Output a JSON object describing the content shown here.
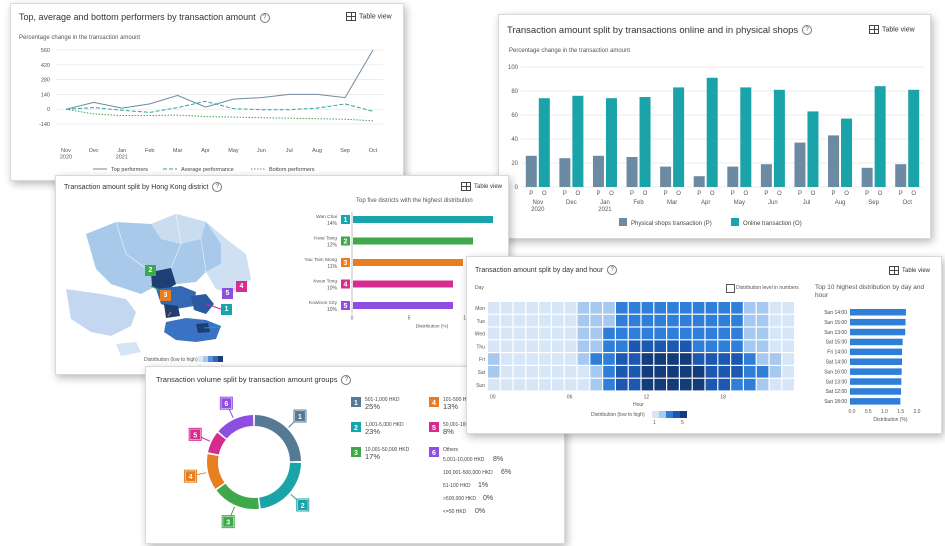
{
  "colors": {
    "teal": "#1aa3a8",
    "grey_blue": "#6d8aa3",
    "dark_green": "#2e8b57",
    "blue": "#2f7fd8",
    "orange": "#e67e22",
    "magenta": "#d42c8f",
    "purple": "#8e4fe0",
    "green": "#3fa84a",
    "steel": "#557a95"
  },
  "common": {
    "table_view": "Table view",
    "info_icon": "info-icon",
    "table_icon": "table-icon"
  },
  "card1": {
    "title": "Top, average and bottom performers by transaction amount",
    "chart_data": {
      "type": "line",
      "subtitle": "Percentage change in the transaction amount",
      "categories": [
        "Nov\n2020",
        "Dec",
        "Jan\n2021",
        "Feb",
        "Mar",
        "Apr",
        "May",
        "Jun",
        "Jul",
        "Aug",
        "Sep",
        "Oct"
      ],
      "yticks": [
        -140,
        0,
        140,
        280,
        420,
        560
      ],
      "ylim": [
        -140,
        560
      ],
      "series": [
        {
          "name": "Top performers",
          "values": [
            0,
            65,
            10,
            50,
            130,
            20,
            95,
            110,
            140,
            140,
            110,
            560
          ]
        },
        {
          "name": "Average performance",
          "values": [
            0,
            15,
            -10,
            -30,
            15,
            75,
            5,
            -5,
            -5,
            10,
            50,
            -20
          ]
        },
        {
          "name": "Bottom performers",
          "values": [
            0,
            -45,
            -60,
            -60,
            -55,
            -70,
            -75,
            -80,
            -85,
            -90,
            -95,
            -110
          ]
        }
      ],
      "legend_position": "bottom"
    }
  },
  "card2": {
    "title": "Transaction amount split by transactions online and in physical shops",
    "chart_data": {
      "type": "bar",
      "subtitle": "Percentage change in the transaction amount",
      "categories": [
        "Nov\n2020",
        "Dec",
        "Jan\n2021",
        "Feb",
        "Mar",
        "Apr",
        "May",
        "Jun",
        "Jul",
        "Aug",
        "Sep",
        "Oct"
      ],
      "bar_labels": [
        "P",
        "O"
      ],
      "ylim": [
        0,
        100
      ],
      "yticks": [
        0,
        20,
        40,
        60,
        80,
        100
      ],
      "series": [
        {
          "name": "Physical shops transaction (P)",
          "values": [
            26,
            24,
            26,
            25,
            17,
            9,
            17,
            19,
            37,
            43,
            16,
            19
          ]
        },
        {
          "name": "Online transaction (O)",
          "values": [
            74,
            76,
            74,
            75,
            83,
            91,
            83,
            81,
            63,
            57,
            84,
            81
          ]
        }
      ],
      "legend_position": "bottom"
    }
  },
  "card3": {
    "title": "Transaction amount split by Hong Kong district",
    "bar_title": "Top five districts with the highest distribution",
    "chart_data": {
      "type": "bar",
      "orientation": "horizontal",
      "categories": [
        "Wan Chai",
        "Kwai Tsing",
        "Yau Tsim Mong",
        "Kwun Tong",
        "Kowloon City"
      ],
      "pct_labels": [
        "14%",
        "12%",
        "11%",
        "10%",
        "10%"
      ],
      "values": [
        14,
        12,
        11,
        10,
        10
      ],
      "ranks": [
        "1",
        "2",
        "3",
        "4",
        "5"
      ],
      "xticks": [
        0,
        5,
        10
      ],
      "xlabel": "Distribution (%)",
      "colors": [
        "#1aa3a8",
        "#3fa84a",
        "#e67e22",
        "#d42c8f",
        "#8e4fe0"
      ]
    },
    "map_legend": "Distribution (low to high)",
    "map_legend_ticks": [
      "1",
      "5"
    ]
  },
  "card4": {
    "title": "Transaction volume split by transaction amount groups",
    "chart_data": {
      "type": "pie",
      "slices": [
        {
          "rank": "1",
          "label": "501-1,000 HKD",
          "pct": "25%",
          "value": 25,
          "color": "#557a95"
        },
        {
          "rank": "2",
          "label": "1,001-5,000 HKD",
          "pct": "23%",
          "value": 23,
          "color": "#1aa3a8"
        },
        {
          "rank": "3",
          "label": "10,001-50,000 HKD",
          "pct": "17%",
          "value": 17,
          "color": "#3fa84a"
        },
        {
          "rank": "4",
          "label": "101-500 HKD",
          "pct": "13%",
          "value": 13,
          "color": "#e67e22"
        },
        {
          "rank": "5",
          "label": "50,001-100,000 HKD",
          "pct": "8%",
          "value": 8,
          "color": "#d42c8f"
        },
        {
          "rank": "6",
          "label": "Others",
          "pct": "",
          "value": 14,
          "color": "#8e4fe0"
        }
      ],
      "others": [
        {
          "label": "5,001-10,000 HKD",
          "pct": "8%"
        },
        {
          "label": "100,001-500,000 HKD",
          "pct": "6%"
        },
        {
          "label": "51-100 HKD",
          "pct": "1%"
        },
        {
          "label": ">500,000 HKD",
          "pct": "0%"
        },
        {
          "label": "<=50 HKD",
          "pct": "0%"
        }
      ]
    }
  },
  "card5": {
    "title": "Transaction amount split by day and hour",
    "checkbox_label": "Distribution level in numbers",
    "day_label": "Day",
    "hour_label": "Hour",
    "legend_label": "Distribution (low to high)",
    "legend_ticks": [
      "1",
      "5"
    ],
    "chart_data": {
      "type": "heatmap",
      "days": [
        "Mon",
        "Tue",
        "Wed",
        "Thu",
        "Fri",
        "Sat",
        "Sun"
      ],
      "hour_ticks": [
        "00",
        "06",
        "12",
        "18"
      ],
      "levels": [
        [
          1,
          1,
          1,
          1,
          1,
          1,
          1,
          2,
          2,
          2,
          3,
          3,
          3,
          3,
          3,
          3,
          3,
          3,
          3,
          3,
          2,
          2,
          1,
          1
        ],
        [
          1,
          1,
          1,
          1,
          1,
          1,
          1,
          2,
          2,
          2,
          3,
          3,
          3,
          3,
          3,
          3,
          3,
          3,
          3,
          3,
          2,
          2,
          1,
          1
        ],
        [
          1,
          1,
          1,
          1,
          1,
          1,
          1,
          2,
          2,
          3,
          3,
          3,
          3,
          3,
          3,
          3,
          3,
          3,
          3,
          3,
          2,
          2,
          1,
          1
        ],
        [
          1,
          1,
          1,
          1,
          1,
          1,
          1,
          2,
          2,
          3,
          3,
          4,
          4,
          4,
          4,
          4,
          3,
          3,
          3,
          3,
          2,
          2,
          1,
          1
        ],
        [
          2,
          1,
          1,
          1,
          1,
          1,
          1,
          2,
          3,
          3,
          4,
          4,
          5,
          5,
          5,
          5,
          4,
          4,
          4,
          4,
          3,
          2,
          2,
          1
        ],
        [
          2,
          1,
          1,
          1,
          1,
          1,
          1,
          1,
          2,
          3,
          4,
          4,
          5,
          5,
          5,
          5,
          5,
          4,
          4,
          4,
          3,
          3,
          2,
          1
        ],
        [
          1,
          1,
          1,
          1,
          1,
          1,
          1,
          1,
          2,
          3,
          4,
          4,
          5,
          5,
          5,
          5,
          5,
          4,
          4,
          3,
          3,
          2,
          1,
          1
        ]
      ]
    },
    "top10": {
      "title": "Top 10 highest distribution by day and hour",
      "labels": [
        "Sun 14:00",
        "Sun 15:00",
        "Sun 13:00",
        "Sat 15:00",
        "Fri 14:00",
        "Sat 14:00",
        "Sun 16:00",
        "Sat 13:00",
        "Sat 12:00",
        "Sun 18:00"
      ],
      "values": [
        1.72,
        1.71,
        1.7,
        1.62,
        1.6,
        1.6,
        1.59,
        1.58,
        1.57,
        1.55
      ],
      "xticks": [
        "0.0",
        "0.5",
        "1.0",
        "1.5",
        "2.0"
      ],
      "xlim": [
        0,
        2
      ],
      "xlabel": "Distribution (%)"
    }
  }
}
